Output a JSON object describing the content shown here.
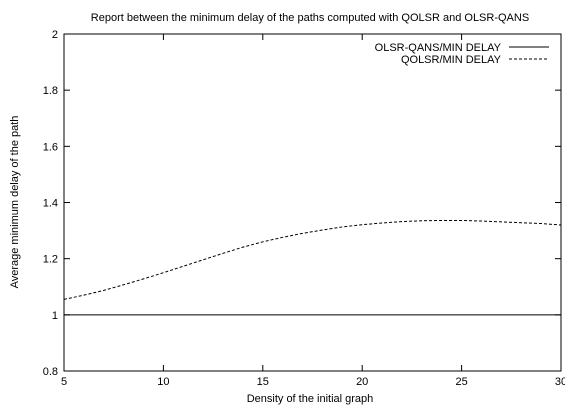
{
  "chart_data": {
    "type": "line",
    "title": "Report between the minimum delay of the paths computed with QOLSR and OLSR-QANS",
    "xlabel": "Density of the initial graph",
    "ylabel": "Average minimum delay of the path",
    "xlim": [
      5,
      30
    ],
    "ylim": [
      0.8,
      2
    ],
    "x_ticks": [
      "5",
      "10",
      "15",
      "20",
      "25",
      "30"
    ],
    "y_ticks": [
      "0.8",
      "1",
      "1.2",
      "1.4",
      "1.6",
      "1.8",
      "2"
    ],
    "grid": false,
    "legend_position": "top-right",
    "series": [
      {
        "name": "OLSR-QANS/MIN DELAY",
        "style": "solid",
        "x": [
          5,
          30
        ],
        "y": [
          1.0,
          1.0
        ]
      },
      {
        "name": "QOLSR/MIN DELAY",
        "style": "dashed",
        "x": [
          5,
          6,
          7,
          8,
          9,
          10,
          11,
          12,
          13,
          14,
          15,
          16,
          17,
          18,
          19,
          20,
          21,
          22,
          23,
          24,
          25,
          26,
          27,
          28,
          29,
          30
        ],
        "y": [
          1.055,
          1.07,
          1.087,
          1.107,
          1.128,
          1.15,
          1.173,
          1.196,
          1.219,
          1.241,
          1.26,
          1.276,
          1.29,
          1.302,
          1.313,
          1.321,
          1.327,
          1.332,
          1.335,
          1.336,
          1.336,
          1.334,
          1.331,
          1.328,
          1.325,
          1.32
        ]
      }
    ]
  }
}
